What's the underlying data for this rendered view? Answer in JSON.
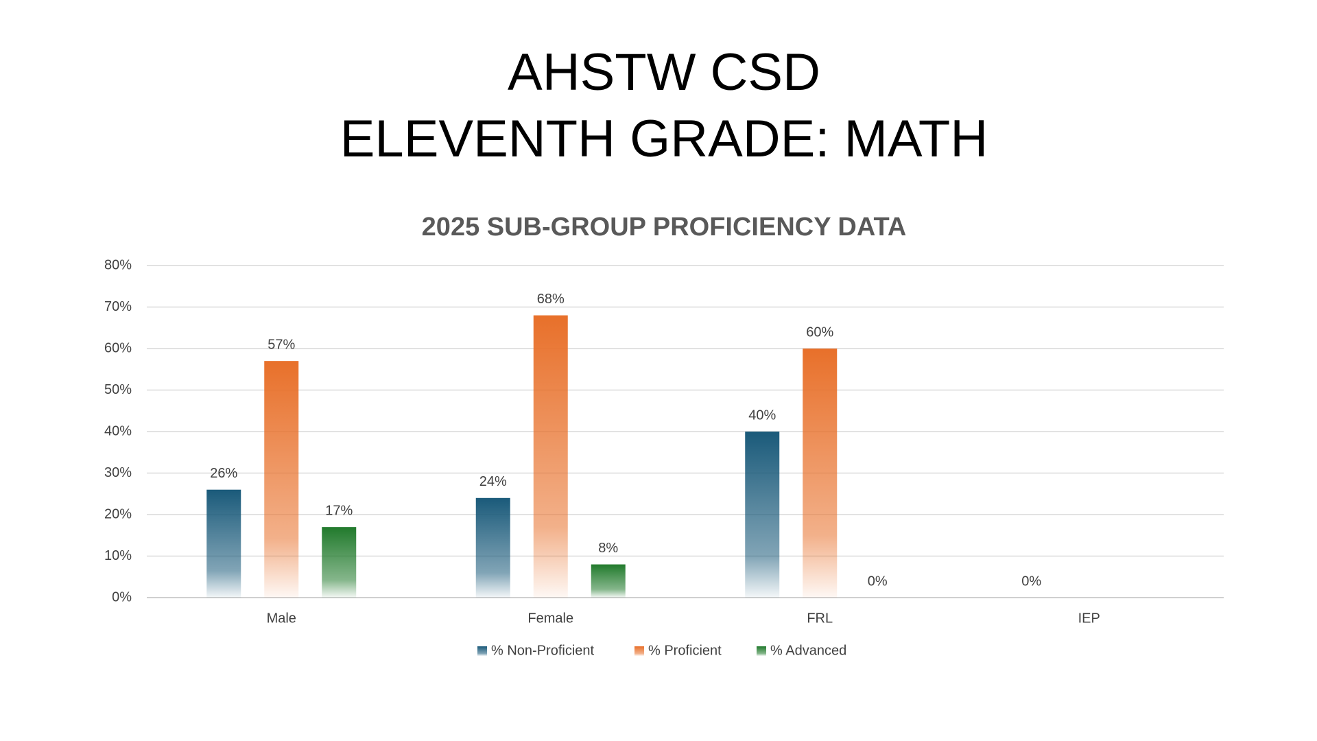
{
  "slide_title": [
    "AHSTW CSD",
    "ELEVENTH GRADE: MATH"
  ],
  "chart_data": {
    "type": "bar",
    "title": "2025 SUB-GROUP PROFICIENCY DATA",
    "categories": [
      "Male",
      "Female",
      "FRL",
      "IEP"
    ],
    "series": [
      {
        "name": "% Non-Proficient",
        "color": "#1a5a7a",
        "values": [
          26,
          24,
          40,
          0
        ],
        "value_labels": [
          "26%",
          "24%",
          "40%",
          "0%"
        ]
      },
      {
        "name": "% Proficient",
        "color": "#e8702a",
        "values": [
          57,
          68,
          60,
          null
        ],
        "value_labels": [
          "57%",
          "68%",
          "60%",
          null
        ]
      },
      {
        "name": "% Advanced",
        "color": "#217a2c",
        "values": [
          17,
          8,
          0,
          null
        ],
        "value_labels": [
          "17%",
          "8%",
          "0%",
          null
        ]
      }
    ],
    "ylim": [
      0,
      80
    ],
    "yticks": [
      {
        "value": 0,
        "label": "0%"
      },
      {
        "value": 10,
        "label": "10%"
      },
      {
        "value": 20,
        "label": "20%"
      },
      {
        "value": 30,
        "label": "30%"
      },
      {
        "value": 40,
        "label": "40%"
      },
      {
        "value": 50,
        "label": "50%"
      },
      {
        "value": 60,
        "label": "60%"
      },
      {
        "value": 70,
        "label": "70%"
      },
      {
        "value": 80,
        "label": "80%"
      }
    ],
    "grid": true,
    "legend": "bottom"
  }
}
